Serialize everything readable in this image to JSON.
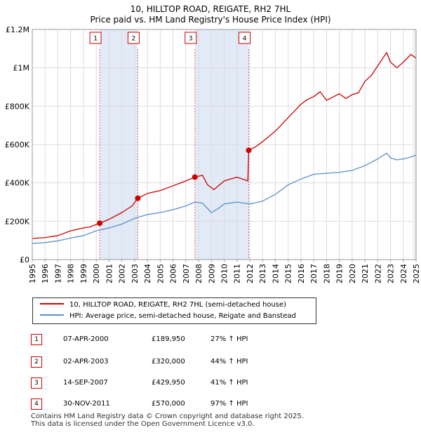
{
  "title_line1": "10, HILLTOP ROAD, REIGATE, RH2 7HL",
  "title_line2": "Price paid vs. HM Land Registry's House Price Index (HPI)",
  "legend": {
    "property_label": "10, HILLTOP ROAD, REIGATE, RH2 7HL (semi-detached house)",
    "hpi_label": "HPI: Average price, semi-detached house, Reigate and Banstead"
  },
  "sales": [
    {
      "num": "1",
      "date": "07-APR-2000",
      "price": "£189,950",
      "hpi": "27% ↑ HPI"
    },
    {
      "num": "2",
      "date": "02-APR-2003",
      "price": "£320,000",
      "hpi": "44% ↑ HPI"
    },
    {
      "num": "3",
      "date": "14-SEP-2007",
      "price": "£429,950",
      "hpi": "41% ↑ HPI"
    },
    {
      "num": "4",
      "date": "30-NOV-2011",
      "price": "£570,000",
      "hpi": "97% ↑ HPI"
    }
  ],
  "footer": {
    "line1": "Contains HM Land Registry data © Crown copyright and database right 2025.",
    "line2": "This data is licensed under the Open Government Licence v3.0."
  },
  "colors": {
    "property": "#cc0000",
    "hpi": "#5b8fc9",
    "grid": "#dddddd",
    "shade": "#dce6f5",
    "marker_line": "#e06666"
  },
  "chart_data": {
    "type": "line",
    "title": "10, HILLTOP ROAD, REIGATE, RH2 7HL — Price paid vs. HM Land Registry's House Price Index (HPI)",
    "xlabel": "",
    "ylabel": "",
    "xlim": [
      1995.0,
      2025.0
    ],
    "ylim": [
      0,
      1200000
    ],
    "y_ticks": [
      0,
      200000,
      400000,
      600000,
      800000,
      1000000,
      1200000
    ],
    "y_tick_labels": [
      "£0",
      "£200K",
      "£400K",
      "£600K",
      "£800K",
      "£1M",
      "£1.2M"
    ],
    "x_ticks": [
      1995,
      1996,
      1997,
      1998,
      1999,
      2000,
      2001,
      2002,
      2003,
      2004,
      2005,
      2006,
      2007,
      2008,
      2009,
      2010,
      2011,
      2012,
      2013,
      2014,
      2015,
      2016,
      2017,
      2018,
      2019,
      2020,
      2021,
      2022,
      2023,
      2024,
      2025
    ],
    "x_tick_labels": [
      "1995",
      "1996",
      "1997",
      "1998",
      "1999",
      "2000",
      "2001",
      "2002",
      "2003",
      "2004",
      "2005",
      "2006",
      "2007",
      "2008",
      "2009",
      "2010",
      "2011",
      "2012",
      "2013",
      "2014",
      "2015",
      "2016",
      "2017",
      "2018",
      "2019",
      "2020",
      "2021",
      "2022",
      "2023",
      "2024",
      "2025"
    ],
    "shaded_spans": [
      [
        2000.27,
        2003.25
      ],
      [
        2007.71,
        2011.92
      ]
    ],
    "sale_markers": [
      {
        "label": "1",
        "x": 2000.27,
        "y": 189950
      },
      {
        "label": "2",
        "x": 2003.25,
        "y": 320000
      },
      {
        "label": "3",
        "x": 2007.71,
        "y": 429950
      },
      {
        "label": "4",
        "x": 2011.92,
        "y": 570000
      }
    ],
    "series": [
      {
        "name": "10, HILLTOP ROAD, REIGATE, RH2 7HL (semi-detached house)",
        "color": "#cc0000",
        "x": [
          1995.0,
          1996.0,
          1997.0,
          1998.0,
          1999.0,
          1999.5,
          2000.27,
          2001.0,
          2002.0,
          2002.8,
          2003.25,
          2004.0,
          2005.0,
          2006.0,
          2007.0,
          2007.71,
          2008.3,
          2008.7,
          2009.2,
          2010.0,
          2011.0,
          2011.85,
          2011.92,
          2012.5,
          2013.0,
          2014.0,
          2015.0,
          2016.0,
          2016.5,
          2017.0,
          2017.5,
          2018.0,
          2019.0,
          2019.5,
          2020.0,
          2020.5,
          2021.0,
          2021.5,
          2022.0,
          2022.7,
          2023.0,
          2023.5,
          2024.0,
          2024.6,
          2025.0
        ],
        "values": [
          110000,
          115000,
          125000,
          150000,
          165000,
          170000,
          189950,
          210000,
          245000,
          280000,
          320000,
          345000,
          360000,
          385000,
          410000,
          429950,
          440000,
          390000,
          365000,
          410000,
          430000,
          410000,
          570000,
          590000,
          615000,
          670000,
          740000,
          810000,
          835000,
          850000,
          875000,
          830000,
          865000,
          840000,
          860000,
          870000,
          930000,
          960000,
          1010000,
          1080000,
          1030000,
          1000000,
          1030000,
          1070000,
          1050000
        ]
      },
      {
        "name": "HPI: Average price, semi-detached house, Reigate and Banstead",
        "color": "#5b8fc9",
        "x": [
          1995.0,
          1996.0,
          1997.0,
          1998.0,
          1999.0,
          2000.0,
          2001.0,
          2002.0,
          2003.0,
          2004.0,
          2005.0,
          2006.0,
          2007.0,
          2007.7,
          2008.3,
          2009.0,
          2009.5,
          2010.0,
          2011.0,
          2012.0,
          2013.0,
          2014.0,
          2015.0,
          2016.0,
          2017.0,
          2018.0,
          2019.0,
          2020.0,
          2021.0,
          2022.0,
          2022.7,
          2023.0,
          2023.5,
          2024.0,
          2024.6,
          2025.0
        ],
        "values": [
          85000,
          88000,
          98000,
          112000,
          125000,
          150000,
          165000,
          185000,
          215000,
          235000,
          245000,
          260000,
          280000,
          300000,
          295000,
          245000,
          265000,
          290000,
          300000,
          290000,
          305000,
          340000,
          390000,
          420000,
          445000,
          450000,
          455000,
          465000,
          490000,
          525000,
          555000,
          530000,
          520000,
          525000,
          535000,
          545000
        ]
      }
    ],
    "legend_position": "bottom"
  }
}
